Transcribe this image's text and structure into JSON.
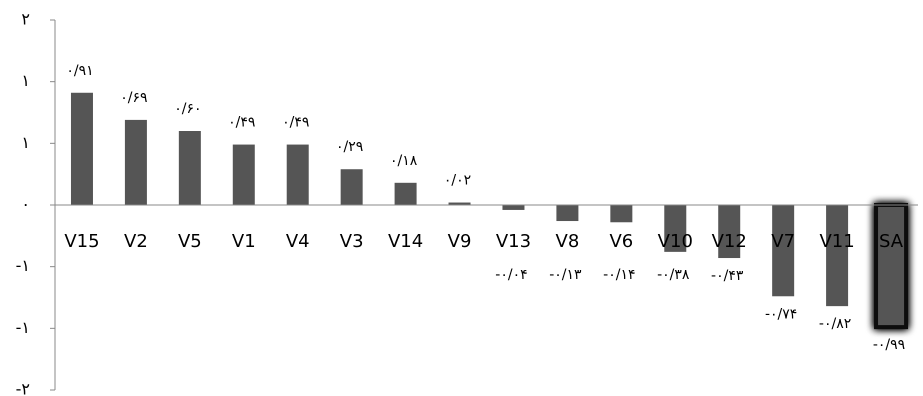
{
  "chart_data": {
    "type": "bar",
    "categories": [
      "V15",
      "V2",
      "V5",
      "V1",
      "V4",
      "V3",
      "V14",
      "V9",
      "V13",
      "V8",
      "V6",
      "V10",
      "V12",
      "V7",
      "V11",
      "SA"
    ],
    "values": [
      0.91,
      0.69,
      0.6,
      0.49,
      0.49,
      0.29,
      0.18,
      0.02,
      -0.04,
      -0.13,
      -0.14,
      -0.38,
      -0.43,
      -0.74,
      -0.82,
      -0.99
    ],
    "value_labels": [
      "۰/۹۱",
      "۰/۶۹",
      "۰/۶۰",
      "۰/۴۹",
      "۰/۴۹",
      "۰/۲۹",
      "۰/۱۸",
      "۰/۰۲",
      "-۰/۰۴",
      "-۰/۱۳",
      "-۰/۱۴",
      "-۰/۳۸",
      "-۰/۴۳",
      "-۰/۷۴",
      "-۰/۸۲",
      "-۰/۹۹"
    ],
    "color": "#555555",
    "ylim": [
      -1.5,
      1.5
    ],
    "yticks": [
      {
        "value": -1.5,
        "label": "-۲"
      },
      {
        "value": -1,
        "label": "-۱"
      },
      {
        "value": -0.5,
        "label": "-۱"
      },
      {
        "value": 0,
        "label": "۰"
      },
      {
        "value": 0.5,
        "label": "۱"
      },
      {
        "value": 1,
        "label": "۱"
      },
      {
        "value": 1.5,
        "label": "۲"
      }
    ],
    "grid": false
  }
}
